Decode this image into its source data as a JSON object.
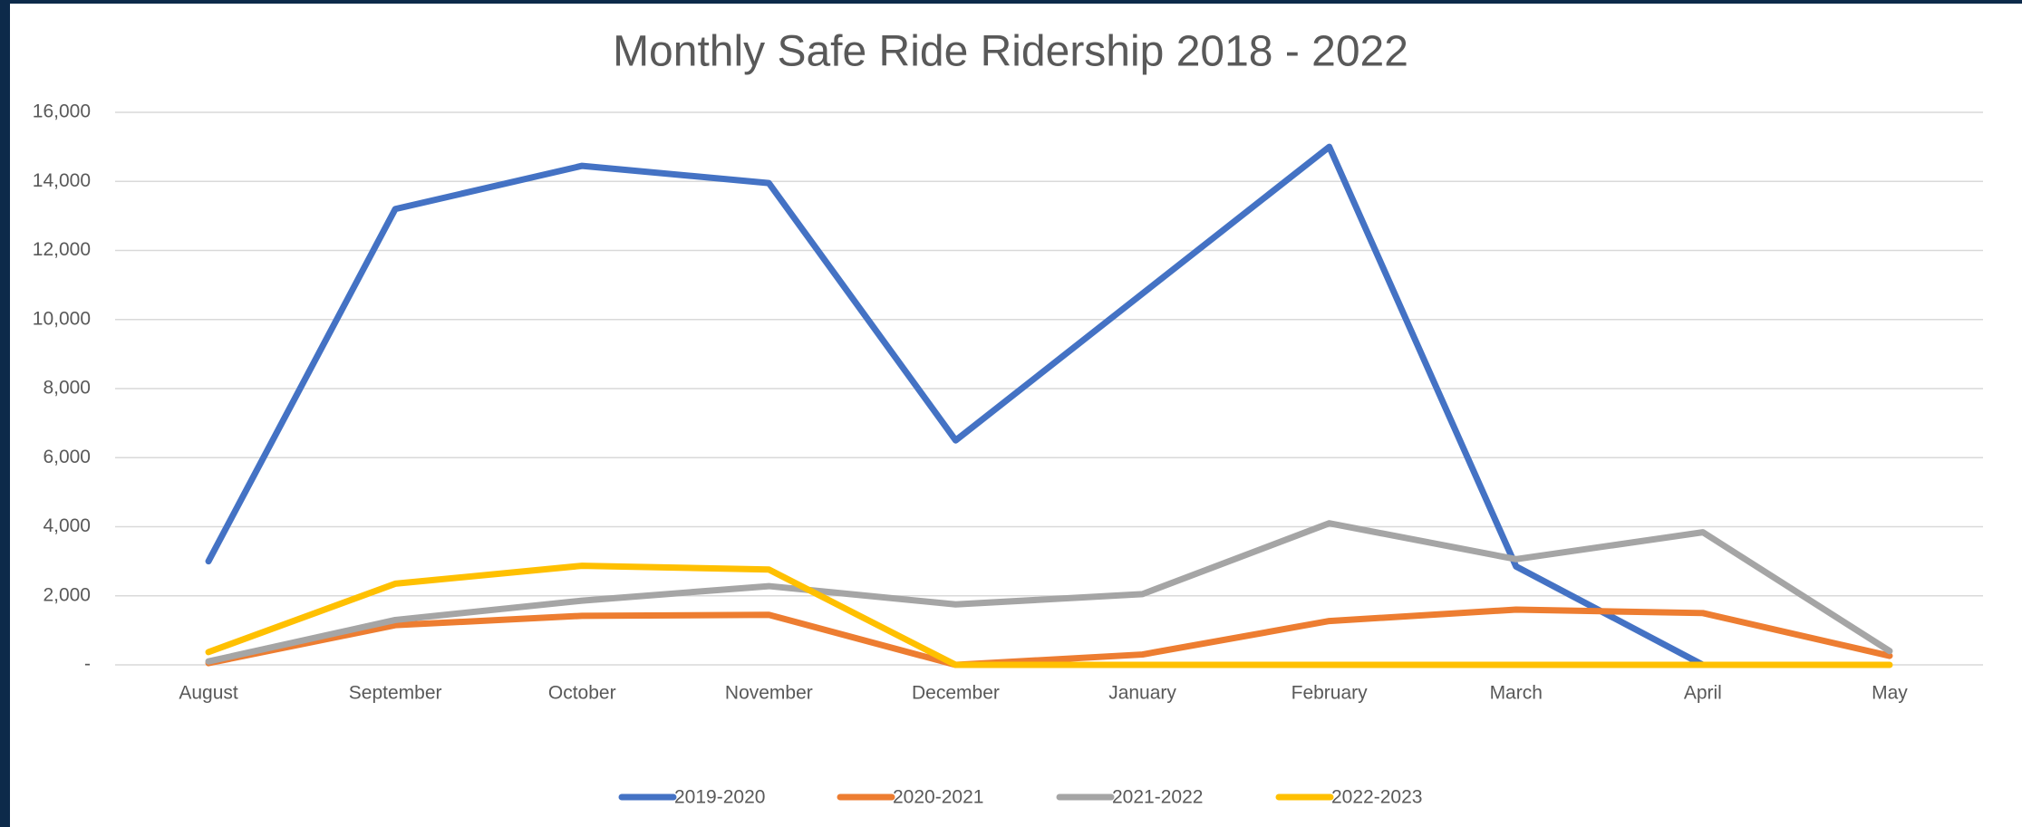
{
  "chart_data": {
    "type": "line",
    "title": "Monthly Safe Ride Ridership 2018 - 2022",
    "categories": [
      "August",
      "September",
      "October",
      "November",
      "December",
      "January",
      "February",
      "March",
      "April",
      "May"
    ],
    "series": [
      {
        "name": "2019-2020",
        "color": "#4472c4",
        "values": [
          3000,
          13200,
          14450,
          13950,
          6500,
          10750,
          15000,
          2850,
          0,
          null
        ]
      },
      {
        "name": "2020-2021",
        "color": "#ed7d31",
        "values": [
          50,
          1150,
          1420,
          1450,
          0,
          300,
          1270,
          1600,
          1500,
          260
        ]
      },
      {
        "name": "2021-2022",
        "color": "#a5a5a5",
        "values": [
          100,
          1300,
          1860,
          2280,
          1750,
          2050,
          4100,
          3060,
          3840,
          400
        ]
      },
      {
        "name": "2022-2023",
        "color": "#ffc000",
        "values": [
          370,
          2350,
          2870,
          2760,
          0,
          0,
          0,
          0,
          0,
          0
        ]
      }
    ],
    "ylim": [
      0,
      16000
    ],
    "yticks": [
      {
        "value": 0,
        "label": "-"
      },
      {
        "value": 2000,
        "label": "2,000"
      },
      {
        "value": 4000,
        "label": "4,000"
      },
      {
        "value": 6000,
        "label": "6,000"
      },
      {
        "value": 8000,
        "label": "8,000"
      },
      {
        "value": 10000,
        "label": "10,000"
      },
      {
        "value": 12000,
        "label": "12,000"
      },
      {
        "value": 14000,
        "label": "14,000"
      },
      {
        "value": 16000,
        "label": "16,000"
      }
    ],
    "grid": true,
    "legend": "bottom"
  }
}
